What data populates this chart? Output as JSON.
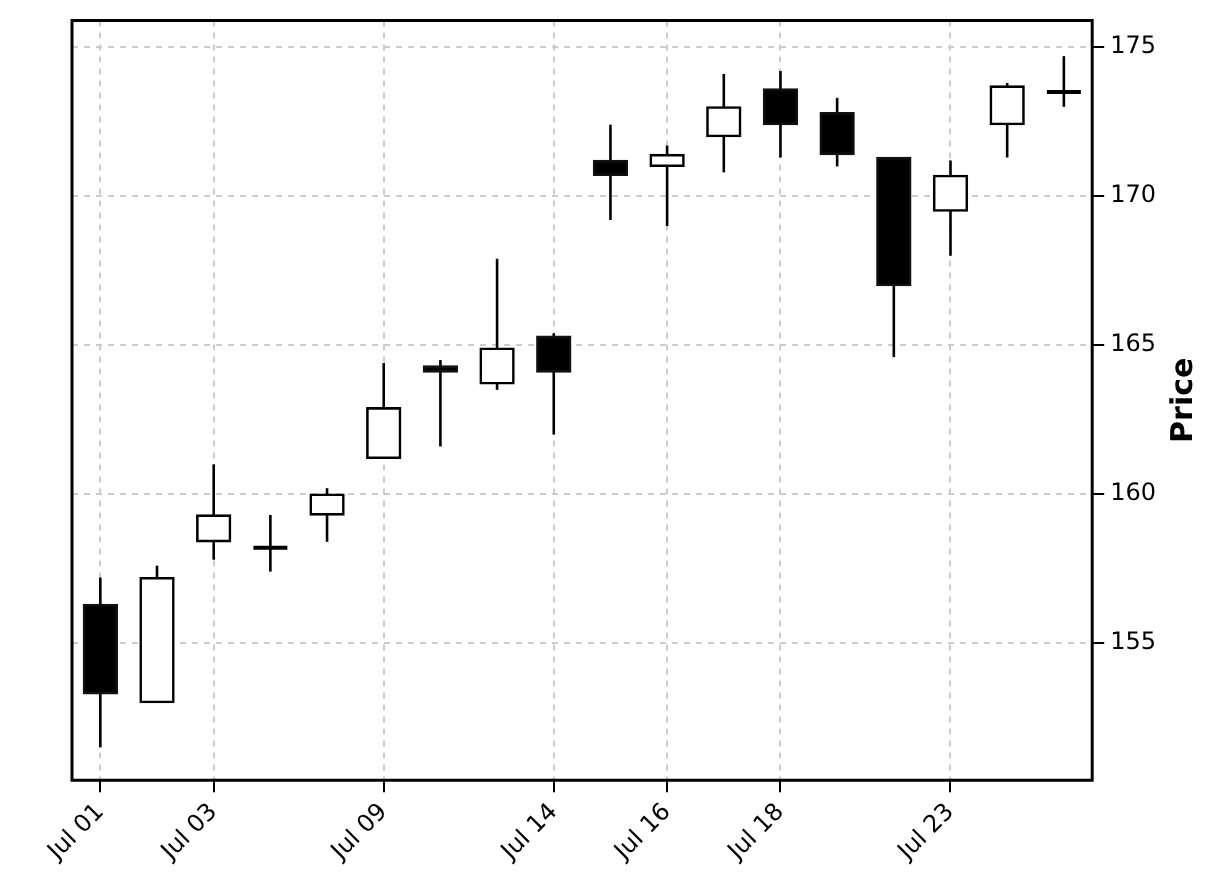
{
  "chart_data": {
    "type": "candlestick",
    "ylabel": "Price",
    "categories": [
      "Jul 01",
      null,
      "Jul 03",
      null,
      null,
      "Jul 09",
      null,
      null,
      "Jul 14",
      null,
      "Jul 16",
      null,
      "Jul 18",
      null,
      null,
      "Jul 23",
      null,
      null
    ],
    "ohlc": [
      [
        156.3,
        157.2,
        151.5,
        153.3
      ],
      [
        153.0,
        157.6,
        153.0,
        157.2
      ],
      [
        158.4,
        161.0,
        157.8,
        159.3
      ],
      [
        158.2,
        159.3,
        157.4,
        158.2
      ],
      [
        159.3,
        160.2,
        158.4,
        160.0
      ],
      [
        161.2,
        164.4,
        161.2,
        162.9
      ],
      [
        164.3,
        164.5,
        161.6,
        164.1
      ],
      [
        163.7,
        167.9,
        163.5,
        164.9
      ],
      [
        165.3,
        165.4,
        162.0,
        164.1
      ],
      [
        171.2,
        172.4,
        169.2,
        170.7
      ],
      [
        171.0,
        171.7,
        169.0,
        171.4
      ],
      [
        172.0,
        174.1,
        170.8,
        173.0
      ],
      [
        173.6,
        174.2,
        171.3,
        172.4
      ],
      [
        172.8,
        173.3,
        171.0,
        171.4
      ],
      [
        171.3,
        171.3,
        164.6,
        167.0
      ],
      [
        169.5,
        171.2,
        168.0,
        170.7
      ],
      [
        172.4,
        173.8,
        171.3,
        173.7
      ],
      [
        173.5,
        174.7,
        173.0,
        173.5
      ]
    ],
    "ylim": [
      150.4,
      175.9
    ],
    "yticks": [
      155,
      160,
      165,
      170,
      175
    ],
    "grid": true
  }
}
